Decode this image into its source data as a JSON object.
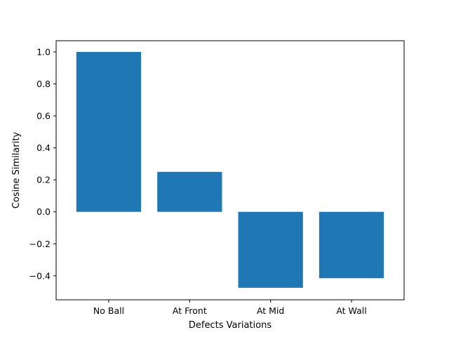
{
  "chart_data": {
    "type": "bar",
    "title": "",
    "xlabel": "Defects Variations",
    "ylabel": "Cosine Similarity",
    "categories": [
      "No Ball",
      "At Front",
      "At Mid",
      "At Wall"
    ],
    "values": [
      1.0,
      0.25,
      -0.475,
      -0.415
    ],
    "ylim": [
      -0.55,
      1.07
    ],
    "yticks": [
      -0.4,
      -0.2,
      0.0,
      0.2,
      0.4,
      0.6,
      0.8,
      1.0
    ],
    "ytick_labels": [
      "−0.4",
      "−0.2",
      "0.0",
      "0.2",
      "0.4",
      "0.6",
      "0.8",
      "1.0"
    ],
    "bar_color": "#1f77b4",
    "grid": false,
    "legend": "none"
  }
}
